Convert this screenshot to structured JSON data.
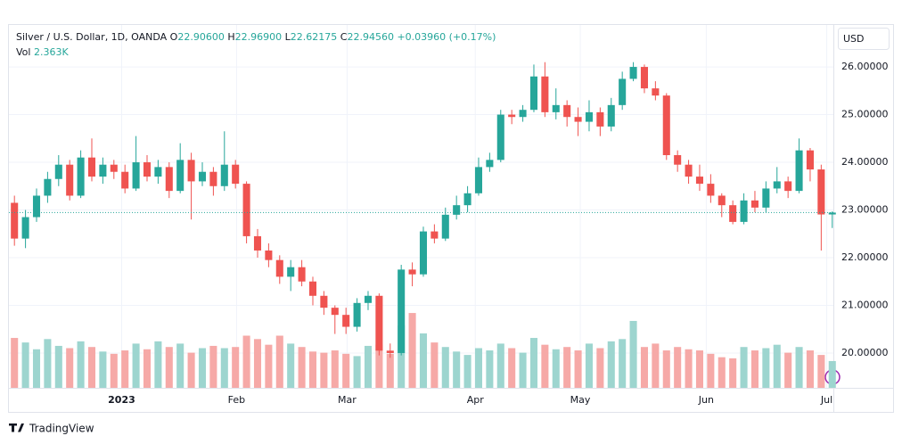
{
  "chart_data": {
    "type": "candlestick",
    "legend": {
      "title": "Silver / U.S. Dollar, 1D, OANDA",
      "fields": [
        {
          "key": "O",
          "value": "22.90600"
        },
        {
          "key": "H",
          "value": "22.96900"
        },
        {
          "key": "L",
          "value": "22.62175"
        },
        {
          "key": "C",
          "value": "22.94560"
        }
      ],
      "change": "+0.03960 (+0.17%)",
      "vol_key": "Vol",
      "vol_value": "2.363K"
    },
    "currency": "USD",
    "brand": "TradingView",
    "up_color": "#26a69a",
    "down_color": "#ef5350",
    "volume_up_color": "#9dd5cf",
    "volume_down_color": "#f6a9a7",
    "grid": true,
    "xlim": [
      0,
      74.6
    ],
    "xticks": [
      {
        "value": 10.2,
        "label": "2023"
      },
      {
        "value": 20.6,
        "label": "Feb"
      },
      {
        "value": 30.6,
        "label": "Mar"
      },
      {
        "value": 42.2,
        "label": "Apr"
      },
      {
        "value": 51.7,
        "label": "May"
      },
      {
        "value": 63.1,
        "label": "Jun"
      },
      {
        "value": 74.0,
        "label": "Jul"
      }
    ],
    "ylim": [
      19.27,
      26.88
    ],
    "yticks": [
      {
        "value": 20,
        "label": "20.00000"
      },
      {
        "value": 21,
        "label": "21.00000"
      },
      {
        "value": 22,
        "label": "22.00000"
      },
      {
        "value": 23,
        "label": "23.00000"
      },
      {
        "value": 24,
        "label": "24.00000"
      },
      {
        "value": 25,
        "label": "25.00000"
      },
      {
        "value": 26,
        "label": "26.00000"
      }
    ],
    "y2lim": [
      0,
      32
    ],
    "candles": {
      "open": [
        23.15,
        22.4,
        22.85,
        23.3,
        23.65,
        23.95,
        23.3,
        24.1,
        23.7,
        23.95,
        23.8,
        23.45,
        24.0,
        23.7,
        23.9,
        23.4,
        24.05,
        23.6,
        23.8,
        23.5,
        23.95,
        23.55,
        22.45,
        22.15,
        21.95,
        21.6,
        21.8,
        21.5,
        21.2,
        20.95,
        20.8,
        20.55,
        21.05,
        21.2,
        20.05,
        20.0,
        21.75,
        21.65,
        22.55,
        22.4,
        22.9,
        23.1,
        23.35,
        23.9,
        24.05,
        25.0,
        24.95,
        25.1,
        25.8,
        25.05,
        25.2,
        24.95,
        24.85,
        25.05,
        24.75,
        25.2,
        25.75,
        26.0,
        25.55,
        25.4,
        24.15,
        23.95,
        23.7,
        23.55,
        23.3,
        23.1,
        22.75,
        23.2,
        23.05,
        23.45,
        23.6,
        23.4,
        24.25,
        23.85,
        22.906
      ],
      "high": [
        23.3,
        23.0,
        23.45,
        23.8,
        24.15,
        24.05,
        24.25,
        24.5,
        24.1,
        24.05,
        23.95,
        24.55,
        24.15,
        24.05,
        24.0,
        24.4,
        24.2,
        24.0,
        23.9,
        24.65,
        24.05,
        23.6,
        22.6,
        22.3,
        22.05,
        21.95,
        21.95,
        21.6,
        21.3,
        21.0,
        20.95,
        21.15,
        21.3,
        21.25,
        20.2,
        21.85,
        21.9,
        22.65,
        22.7,
        23.05,
        23.3,
        23.5,
        24.1,
        24.2,
        25.1,
        25.1,
        25.2,
        26.05,
        26.1,
        25.55,
        25.3,
        25.15,
        25.3,
        25.15,
        25.35,
        25.9,
        26.1,
        26.05,
        25.7,
        25.45,
        24.25,
        24.05,
        23.95,
        23.75,
        23.35,
        23.2,
        23.35,
        23.4,
        23.6,
        23.9,
        23.7,
        24.5,
        24.3,
        23.95,
        22.969
      ],
      "low": [
        22.25,
        22.2,
        22.75,
        23.15,
        23.5,
        23.2,
        23.25,
        23.6,
        23.55,
        23.65,
        23.35,
        23.4,
        23.6,
        23.55,
        23.25,
        23.35,
        22.8,
        23.5,
        23.3,
        23.4,
        23.45,
        22.3,
        22.0,
        21.8,
        21.45,
        21.3,
        21.4,
        21.0,
        20.8,
        20.4,
        20.4,
        20.45,
        20.9,
        19.95,
        19.9,
        19.95,
        21.4,
        21.6,
        22.3,
        22.35,
        22.8,
        22.95,
        23.3,
        23.8,
        24.0,
        24.8,
        24.85,
        25.05,
        24.95,
        24.9,
        24.75,
        24.55,
        24.65,
        24.55,
        24.65,
        25.1,
        25.7,
        25.45,
        25.3,
        24.05,
        23.8,
        23.55,
        23.4,
        23.15,
        22.85,
        22.7,
        22.7,
        22.95,
        22.95,
        23.35,
        23.25,
        23.35,
        23.6,
        22.15,
        22.62175
      ],
      "close": [
        22.4,
        22.85,
        23.3,
        23.65,
        23.95,
        23.3,
        24.1,
        23.7,
        23.95,
        23.8,
        23.45,
        24.0,
        23.7,
        23.9,
        23.4,
        24.05,
        23.6,
        23.8,
        23.5,
        23.95,
        23.55,
        22.45,
        22.15,
        21.95,
        21.6,
        21.8,
        21.5,
        21.2,
        20.95,
        20.8,
        20.55,
        21.05,
        21.2,
        20.05,
        20.0,
        21.75,
        21.65,
        22.55,
        22.4,
        22.9,
        23.1,
        23.35,
        23.9,
        24.05,
        25.0,
        24.95,
        25.1,
        25.8,
        25.05,
        25.2,
        24.95,
        24.85,
        25.05,
        24.75,
        25.2,
        25.75,
        26.0,
        25.55,
        25.4,
        24.15,
        23.95,
        23.7,
        23.55,
        23.3,
        23.1,
        22.75,
        23.2,
        23.05,
        23.45,
        23.6,
        23.4,
        24.25,
        23.85,
        22.906,
        22.9456
      ]
    },
    "volume": {
      "axis": "y2",
      "values": [
        4.4,
        4.0,
        3.4,
        4.3,
        3.7,
        3.5,
        4.1,
        3.6,
        3.2,
        3.0,
        3.3,
        3.9,
        3.4,
        4.1,
        3.6,
        3.9,
        3.1,
        3.5,
        3.7,
        3.5,
        3.6,
        4.6,
        4.3,
        3.8,
        4.6,
        3.9,
        3.6,
        3.2,
        3.1,
        3.3,
        3.0,
        2.8,
        3.7,
        3.8,
        3.0,
        5.5,
        6.6,
        4.8,
        4.0,
        3.6,
        3.2,
        2.9,
        3.5,
        3.3,
        3.9,
        3.5,
        3.1,
        4.4,
        3.8,
        3.4,
        3.6,
        3.3,
        3.9,
        3.5,
        4.1,
        4.3,
        5.9,
        3.6,
        3.9,
        3.3,
        3.6,
        3.4,
        3.3,
        3.0,
        2.7,
        2.6,
        3.6,
        3.3,
        3.5,
        3.8,
        3.1,
        3.6,
        3.3,
        2.9,
        2.363
      ]
    }
  }
}
